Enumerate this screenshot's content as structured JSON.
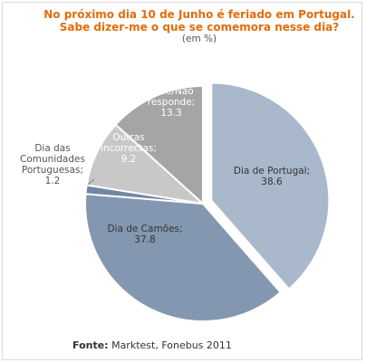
{
  "chart_data": {
    "type": "pie",
    "title_lines": [
      "No próximo dia 10 de Junho é feriado em Portugal.",
      "Sabe dizer-me o que se comemora nesse dia?"
    ],
    "subtitle": "(em %)",
    "slices": [
      {
        "label_lines": [
          "Dia de Portugal;",
          "38.6"
        ],
        "category": "Dia de Portugal",
        "value": 38.6,
        "color": "#aab8cc",
        "exploded": true
      },
      {
        "label_lines": [
          "Dia de Camões;",
          "37.8"
        ],
        "category": "Dia de Camões",
        "value": 37.8,
        "color": "#8497b0",
        "exploded": false
      },
      {
        "label_lines": [
          "Dia das",
          "Comunidades",
          "Portuguesas;",
          "1.2"
        ],
        "category": "Dia das Comunidades Portuguesas",
        "value": 1.2,
        "color": "#7087a4",
        "exploded": false
      },
      {
        "label_lines": [
          "Outras",
          "incorrectas;",
          "9.2"
        ],
        "category": "Outras incorrectas",
        "value": 9.2,
        "color": "#c8c8c8",
        "exploded": false
      },
      {
        "label_lines": [
          "Não",
          "sabe/Não",
          "responde;",
          "13.3"
        ],
        "category": "Não sabe/Não responde",
        "value": 13.3,
        "color": "#a5a5a5",
        "exploded": false
      }
    ],
    "legend": "none"
  },
  "source": {
    "label": "Fonte:",
    "text": " Marktest, Fonebus 2011"
  }
}
